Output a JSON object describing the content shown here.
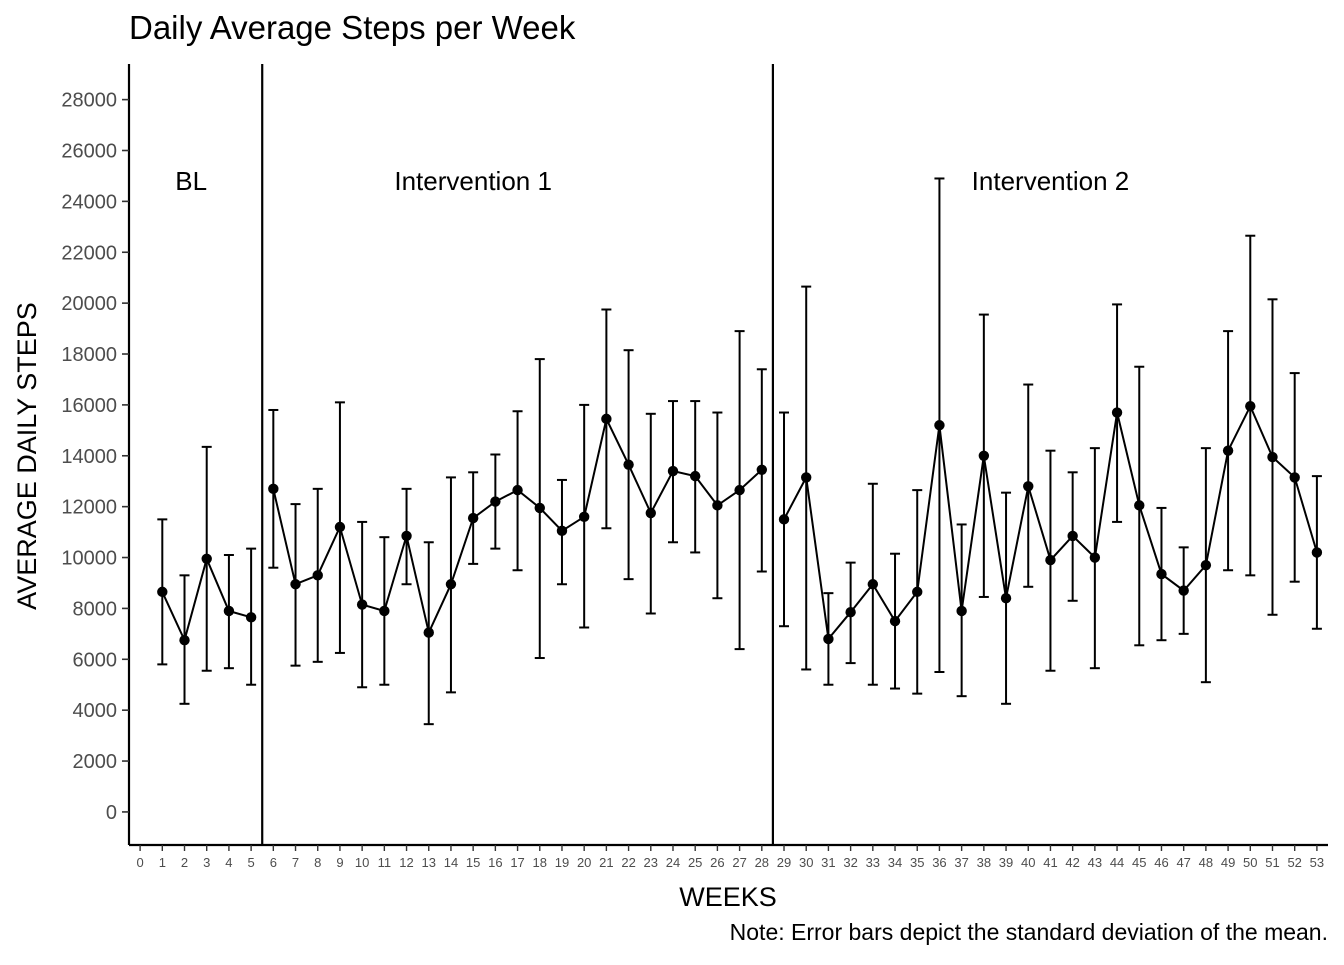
{
  "chart_data": {
    "type": "line",
    "title": "Daily Average Steps per Week",
    "xlabel": "WEEKS",
    "ylabel": "AVERAGE DAILY STEPS",
    "note": "Note: Error bars depict the standard deviation of the mean.",
    "xlim": [
      -0.5,
      53.5
    ],
    "ylim": [
      -1300,
      29400
    ],
    "x_ticks": [
      0,
      1,
      2,
      3,
      4,
      5,
      6,
      7,
      8,
      9,
      10,
      11,
      12,
      13,
      14,
      15,
      16,
      17,
      18,
      19,
      20,
      21,
      22,
      23,
      24,
      25,
      26,
      27,
      28,
      29,
      30,
      31,
      32,
      33,
      34,
      35,
      36,
      37,
      38,
      39,
      40,
      41,
      42,
      43,
      44,
      45,
      46,
      47,
      48,
      49,
      50,
      51,
      52,
      53
    ],
    "y_ticks": [
      0,
      2000,
      4000,
      6000,
      8000,
      10000,
      12000,
      14000,
      16000,
      18000,
      20000,
      22000,
      24000,
      26000,
      28000
    ],
    "grid": false,
    "phase_lines": [
      5.5,
      28.5
    ],
    "phases": [
      {
        "label": "BL",
        "x": 2.3,
        "y": 24800
      },
      {
        "label": "Intervention 1",
        "x": 15,
        "y": 24800
      },
      {
        "label": "Intervention 2",
        "x": 41,
        "y": 24800
      }
    ],
    "series": [
      {
        "x": [
          1,
          2,
          3,
          4,
          5
        ],
        "values": [
          8650,
          6750,
          9950,
          7900,
          7650
        ],
        "err_low": [
          5800,
          4250,
          5550,
          5650,
          5000
        ],
        "err_high": [
          11500,
          9300,
          14350,
          10100,
          10350
        ]
      },
      {
        "x": [
          6,
          7,
          8,
          9,
          10,
          11,
          12,
          13,
          14,
          15,
          16,
          17,
          18,
          19,
          20,
          21,
          22,
          23,
          24,
          25,
          26,
          27,
          28
        ],
        "values": [
          12700,
          8950,
          9300,
          11200,
          8150,
          7900,
          10850,
          7050,
          8950,
          11550,
          12200,
          12650,
          11950,
          11050,
          11600,
          15450,
          13650,
          11750,
          13400,
          13200,
          12050,
          12650,
          13450
        ],
        "err_low": [
          9600,
          5750,
          5900,
          6250,
          4900,
          5000,
          8950,
          3450,
          4700,
          9750,
          10350,
          9500,
          6050,
          8950,
          7250,
          11150,
          9150,
          7800,
          10600,
          10200,
          8400,
          6400,
          9450
        ],
        "err_high": [
          15800,
          12100,
          12700,
          16100,
          11400,
          10800,
          12700,
          10600,
          13150,
          13350,
          14050,
          15750,
          17800,
          13050,
          16000,
          19750,
          18150,
          15650,
          16150,
          16150,
          15700,
          18900,
          17400
        ]
      },
      {
        "x": [
          29,
          30,
          31,
          32,
          33,
          34,
          35,
          36,
          37,
          38,
          39,
          40,
          41,
          42,
          43,
          44,
          45,
          46,
          47,
          48,
          49,
          50,
          51,
          52,
          53
        ],
        "values": [
          11500,
          13150,
          6800,
          7850,
          8950,
          7500,
          8650,
          15200,
          7900,
          14000,
          8400,
          12800,
          9900,
          10850,
          10000,
          15700,
          12050,
          9350,
          8700,
          9700,
          14200,
          15950,
          13950,
          13150,
          10200
        ],
        "err_low": [
          7300,
          5600,
          5000,
          5850,
          5000,
          4850,
          4650,
          5500,
          4550,
          8450,
          4250,
          8850,
          5550,
          8300,
          5650,
          11400,
          6550,
          6750,
          7000,
          5100,
          9500,
          9300,
          7750,
          9050,
          7200
        ],
        "err_high": [
          15700,
          20650,
          8600,
          9800,
          12900,
          10150,
          12650,
          24900,
          11300,
          19550,
          12550,
          16800,
          14200,
          13350,
          14300,
          19950,
          17500,
          11950,
          10400,
          14300,
          18900,
          22650,
          20150,
          17250,
          13200
        ]
      }
    ]
  }
}
